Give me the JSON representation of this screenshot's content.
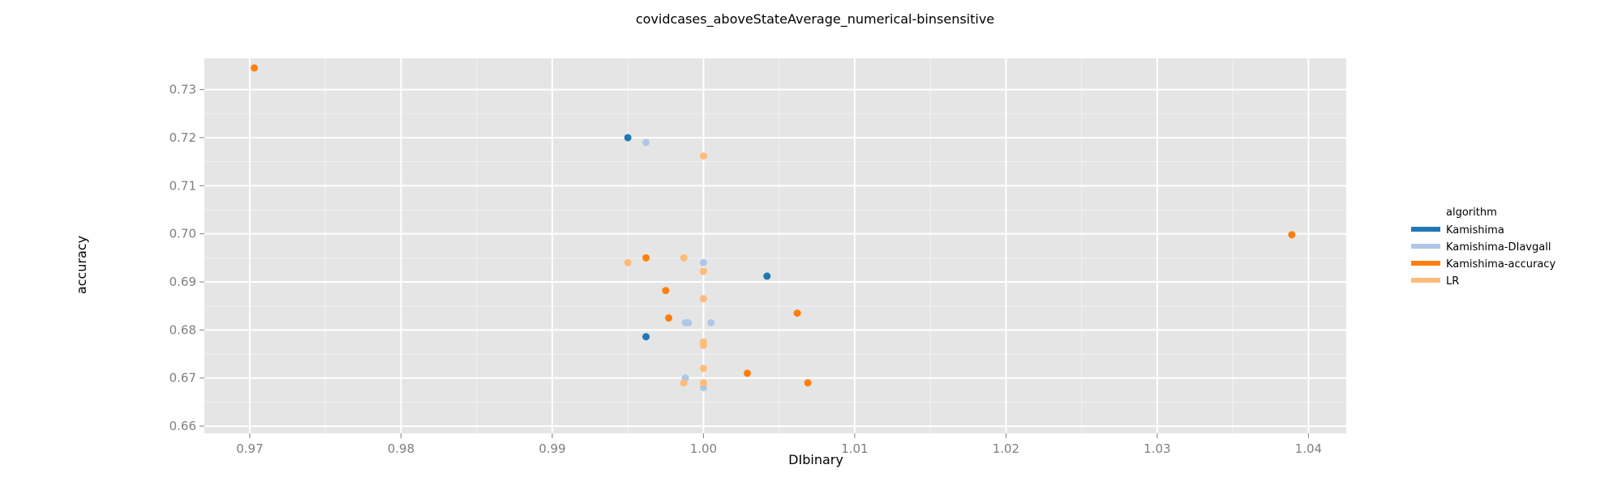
{
  "chart_data": {
    "type": "scatter",
    "title": "covidcases_aboveStateAverage_numerical-binsensitive",
    "xlabel": "DIbinary",
    "ylabel": "accuracy",
    "xlim": [
      0.967,
      1.0425
    ],
    "ylim": [
      0.6585,
      0.7365
    ],
    "x_ticks": [
      0.97,
      0.98,
      0.99,
      1.0,
      1.01,
      1.02,
      1.03,
      1.04
    ],
    "x_tick_labels": [
      "0.97",
      "0.98",
      "0.99",
      "1.00",
      "1.01",
      "1.02",
      "1.03",
      "1.04"
    ],
    "y_ticks": [
      0.66,
      0.67,
      0.68,
      0.69,
      0.7,
      0.71,
      0.72,
      0.73
    ],
    "y_tick_labels": [
      "0.66",
      "0.67",
      "0.68",
      "0.69",
      "0.70",
      "0.71",
      "0.72",
      "0.73"
    ],
    "grid": true,
    "legend_title": "algorithm",
    "legend_position": "right",
    "series": [
      {
        "name": "Kamishima",
        "color": "#1f77b4",
        "points": [
          [
            0.995,
            0.72
          ],
          [
            1.0042,
            0.6912
          ],
          [
            0.9962,
            0.6786
          ]
        ]
      },
      {
        "name": "Kamishima-DIavgall",
        "color": "#aec7e8",
        "points": [
          [
            0.9962,
            0.719
          ],
          [
            1.0,
            0.694
          ],
          [
            0.9988,
            0.6815
          ],
          [
            0.999,
            0.6815
          ],
          [
            1.0005,
            0.6815
          ],
          [
            0.9988,
            0.67
          ],
          [
            1.0,
            0.668
          ]
        ]
      },
      {
        "name": "Kamishima-accuracy",
        "color": "#ff7f0e",
        "points": [
          [
            0.9703,
            0.7345
          ],
          [
            1.0389,
            0.6998
          ],
          [
            0.9962,
            0.695
          ],
          [
            0.9975,
            0.6882
          ],
          [
            0.9977,
            0.6825
          ],
          [
            1.0062,
            0.6835
          ],
          [
            1.0029,
            0.671
          ],
          [
            1.0069,
            0.669
          ]
        ]
      },
      {
        "name": "LR",
        "color": "#ffbb78",
        "points": [
          [
            1.0,
            0.7162
          ],
          [
            0.995,
            0.694
          ],
          [
            0.9987,
            0.695
          ],
          [
            1.0,
            0.6922
          ],
          [
            1.0,
            0.6865
          ],
          [
            1.0,
            0.6775
          ],
          [
            1.0,
            0.6768
          ],
          [
            1.0,
            0.672
          ],
          [
            0.9987,
            0.669
          ],
          [
            1.0,
            0.669
          ]
        ]
      }
    ]
  }
}
